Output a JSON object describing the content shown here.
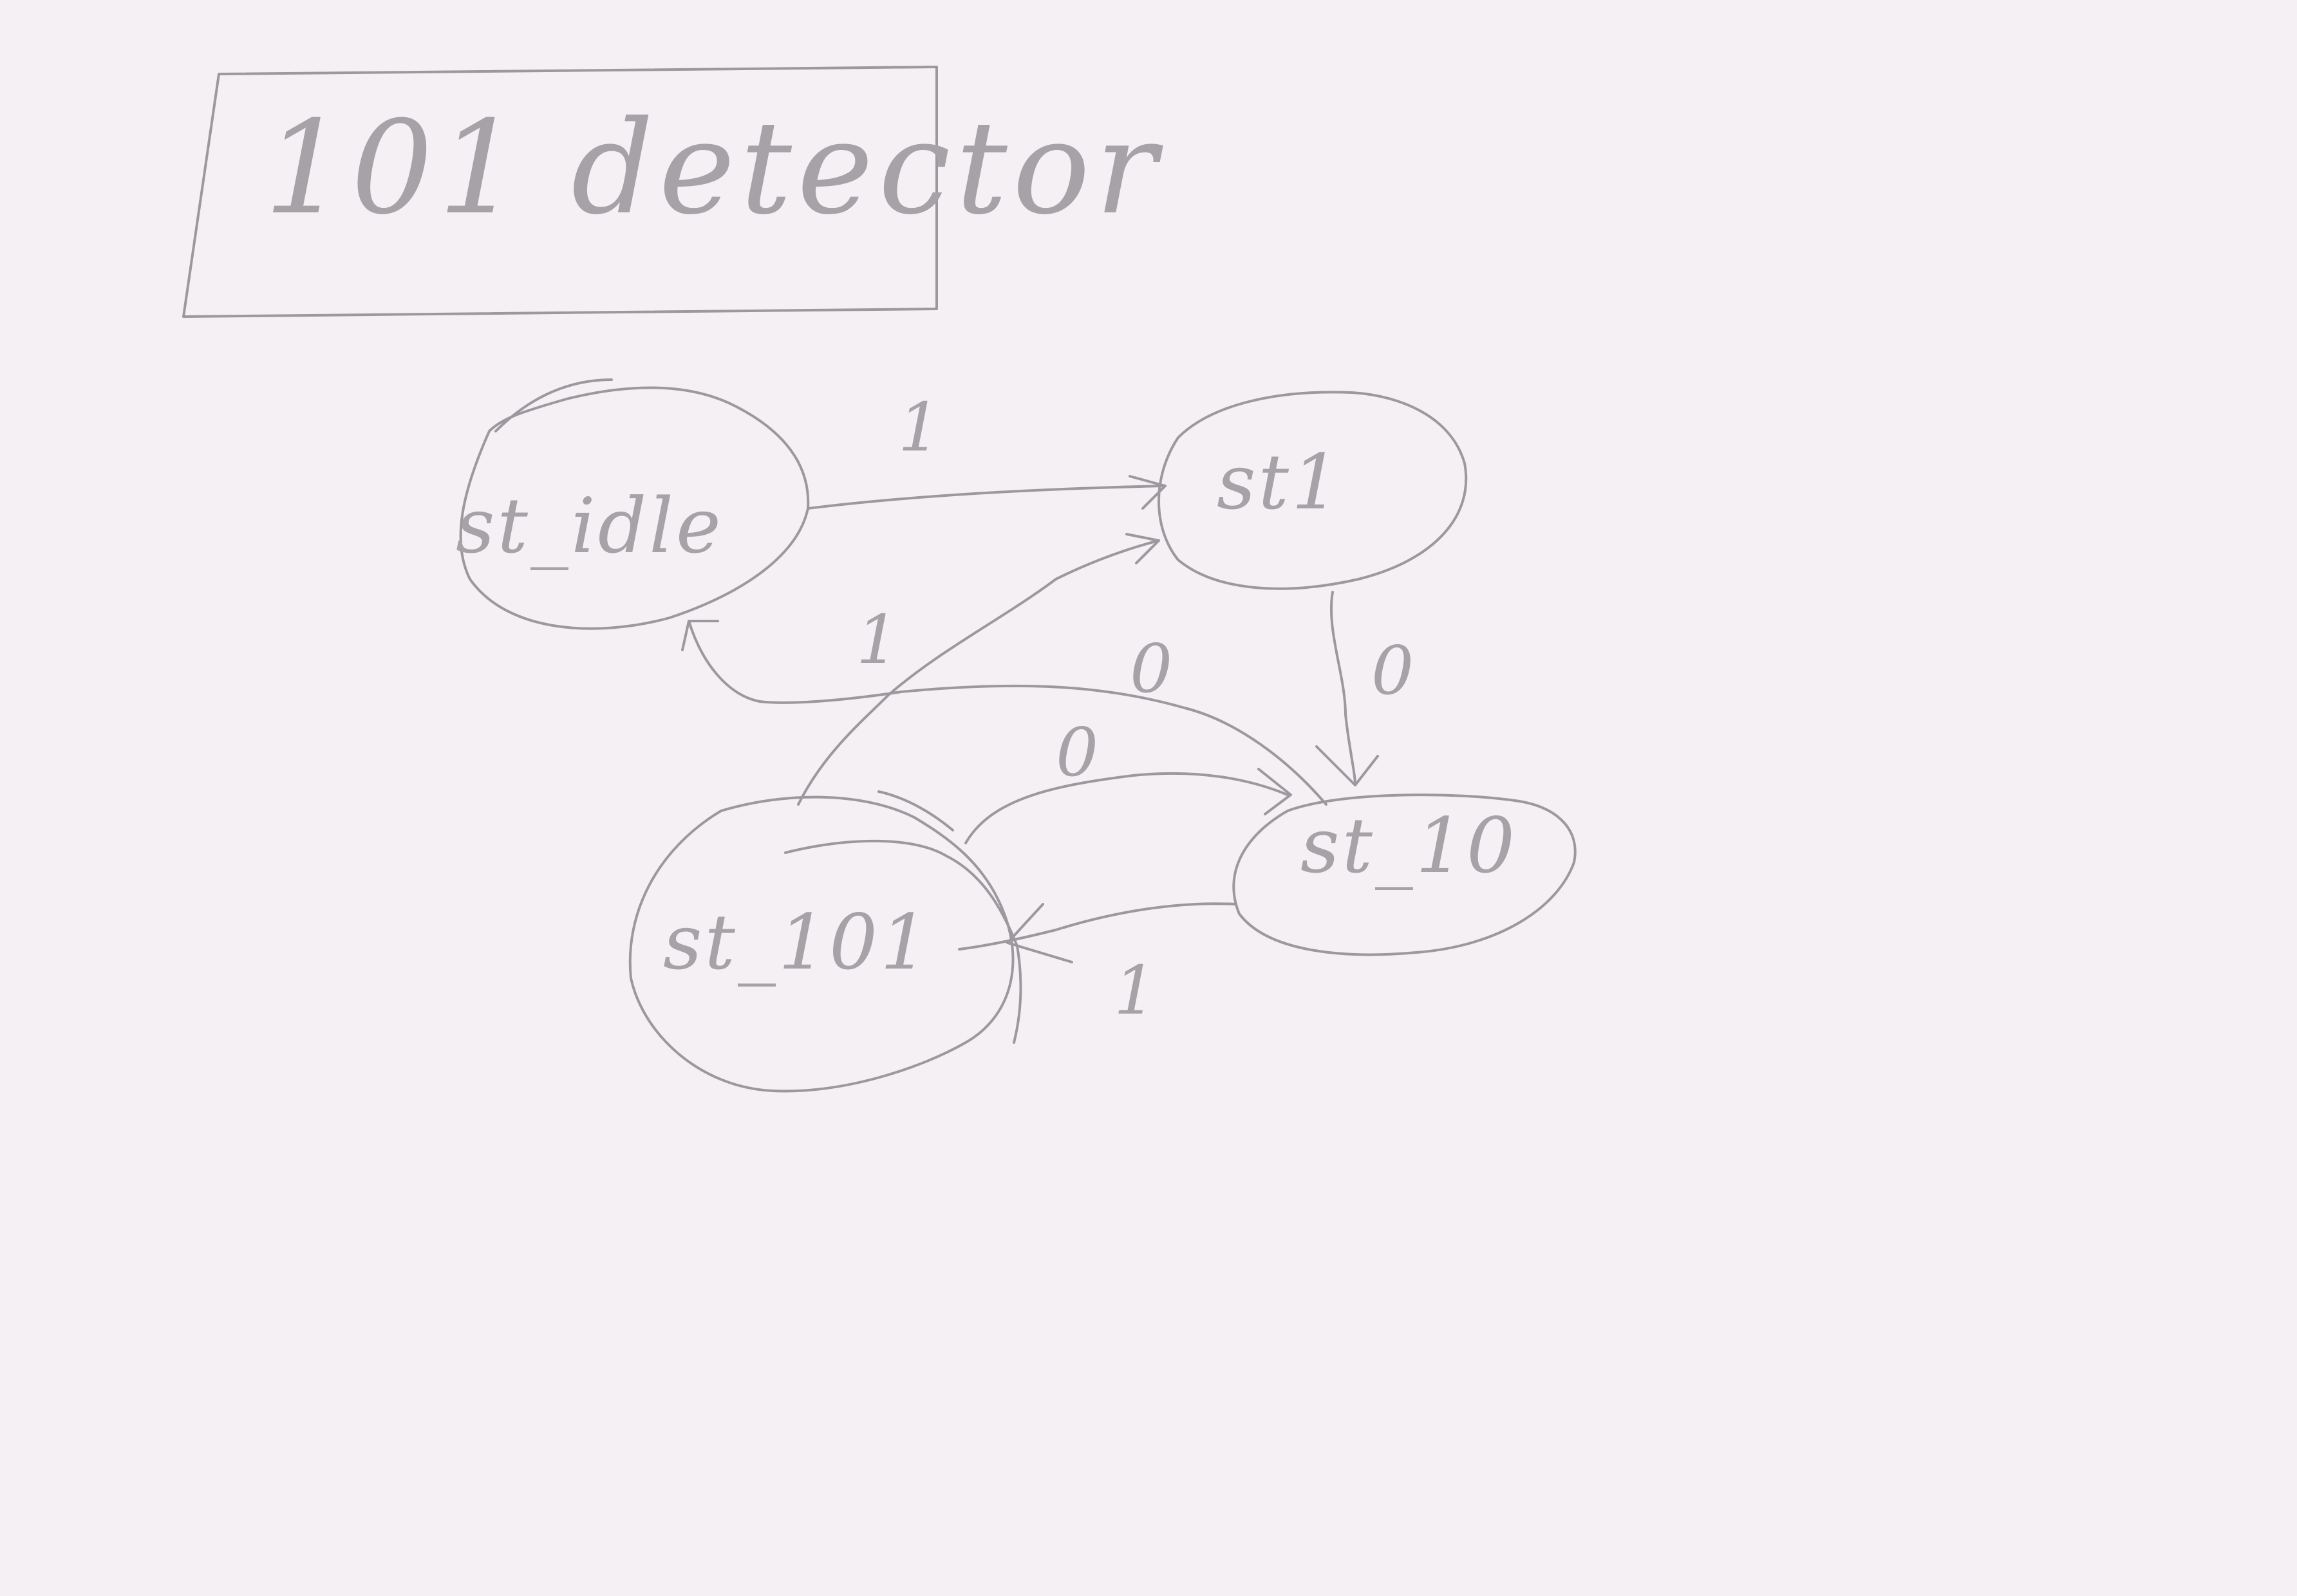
{
  "title": "101 detector",
  "states": {
    "idle": "st_idle",
    "s1": "st1",
    "s10": "st_10",
    "s101": "st_101"
  },
  "transitions": {
    "idle_to_s1": "1",
    "s1_to_s10": "0",
    "s10_to_idle": "0",
    "s101_to_s1": "1",
    "s101_to_s10": "0",
    "s10_to_s101": "1"
  }
}
